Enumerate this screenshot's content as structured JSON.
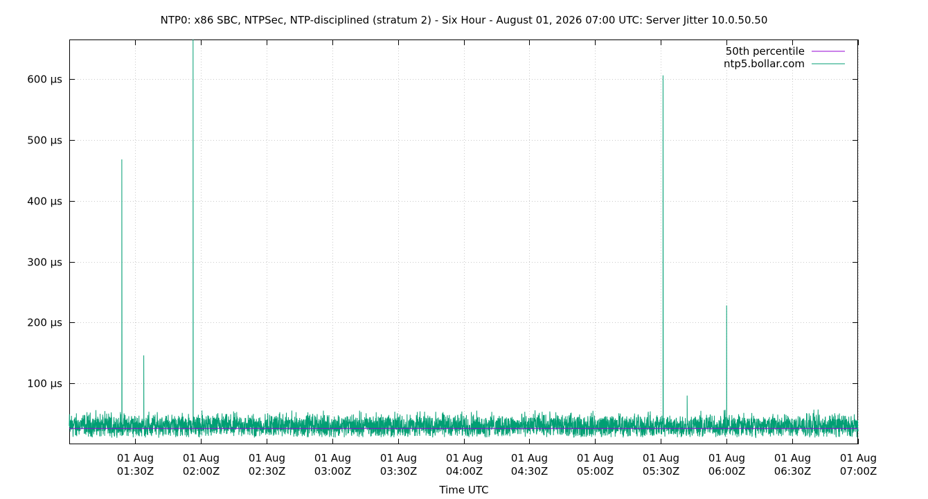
{
  "chart_data": {
    "type": "line",
    "title": "NTP0: x86 SBC, NTPSec, NTP-disciplined (stratum 2) - Six Hour - August 01, 2026 07:00 UTC: Server Jitter 10.0.50.50",
    "xlabel": "Time UTC",
    "ylabel": "",
    "grid": true,
    "legend_position": "top-right",
    "x_range_utc": [
      "2026-08-01T01:00:00Z",
      "2026-08-01T07:00:00Z"
    ],
    "ylim_us": [
      0,
      665
    ],
    "x_ticks": [
      {
        "time": "2026-08-01T01:30:00Z",
        "line1": "01 Aug",
        "line2": "01:30Z"
      },
      {
        "time": "2026-08-01T02:00:00Z",
        "line1": "01 Aug",
        "line2": "02:00Z"
      },
      {
        "time": "2026-08-01T02:30:00Z",
        "line1": "01 Aug",
        "line2": "02:30Z"
      },
      {
        "time": "2026-08-01T03:00:00Z",
        "line1": "01 Aug",
        "line2": "03:00Z"
      },
      {
        "time": "2026-08-01T03:30:00Z",
        "line1": "01 Aug",
        "line2": "03:30Z"
      },
      {
        "time": "2026-08-01T04:00:00Z",
        "line1": "01 Aug",
        "line2": "04:00Z"
      },
      {
        "time": "2026-08-01T04:30:00Z",
        "line1": "01 Aug",
        "line2": "04:30Z"
      },
      {
        "time": "2026-08-01T05:00:00Z",
        "line1": "01 Aug",
        "line2": "05:00Z"
      },
      {
        "time": "2026-08-01T05:30:00Z",
        "line1": "01 Aug",
        "line2": "05:30Z"
      },
      {
        "time": "2026-08-01T06:00:00Z",
        "line1": "01 Aug",
        "line2": "06:00Z"
      },
      {
        "time": "2026-08-01T06:30:00Z",
        "line1": "01 Aug",
        "line2": "06:30Z"
      },
      {
        "time": "2026-08-01T07:00:00Z",
        "line1": "01 Aug",
        "line2": "07:00Z"
      }
    ],
    "y_ticks": [
      {
        "value": 100,
        "label": "100 µs"
      },
      {
        "value": 200,
        "label": "200 µs"
      },
      {
        "value": 300,
        "label": "300 µs"
      },
      {
        "value": 400,
        "label": "400 µs"
      },
      {
        "value": 500,
        "label": "500 µs"
      },
      {
        "value": 600,
        "label": "600 µs"
      }
    ],
    "series": [
      {
        "name": "50th percentile",
        "color": "#9400d3",
        "constant_value_us": 26
      },
      {
        "name": "ntp5.bollar.com",
        "color": "#009e73",
        "typical_range_us": [
          5,
          60
        ],
        "points": [
          {
            "time": "2026-08-01T01:00:00Z",
            "value": 30
          },
          {
            "time": "2026-08-01T01:23:00Z",
            "value": 35
          },
          {
            "time": "2026-08-01T01:24:00Z",
            "value": 468
          },
          {
            "time": "2026-08-01T01:25:00Z",
            "value": 30
          },
          {
            "time": "2026-08-01T01:33:00Z",
            "value": 30
          },
          {
            "time": "2026-08-01T01:34:00Z",
            "value": 146
          },
          {
            "time": "2026-08-01T01:35:00Z",
            "value": 25
          },
          {
            "time": "2026-08-01T01:56:00Z",
            "value": 30
          },
          {
            "time": "2026-08-01T01:56:30Z",
            "value": 665
          },
          {
            "time": "2026-08-01T01:57:00Z",
            "value": 30
          },
          {
            "time": "2026-08-01T05:30:00Z",
            "value": 30
          },
          {
            "time": "2026-08-01T05:31:00Z",
            "value": 606
          },
          {
            "time": "2026-08-01T05:32:00Z",
            "value": 30
          },
          {
            "time": "2026-08-01T05:41:00Z",
            "value": 25
          },
          {
            "time": "2026-08-01T05:42:00Z",
            "value": 80
          },
          {
            "time": "2026-08-01T05:43:00Z",
            "value": 25
          },
          {
            "time": "2026-08-01T05:59:00Z",
            "value": 30
          },
          {
            "time": "2026-08-01T06:00:00Z",
            "value": 228
          },
          {
            "time": "2026-08-01T06:01:00Z",
            "value": 30
          },
          {
            "time": "2026-08-01T07:00:00Z",
            "value": 25
          }
        ]
      }
    ]
  }
}
